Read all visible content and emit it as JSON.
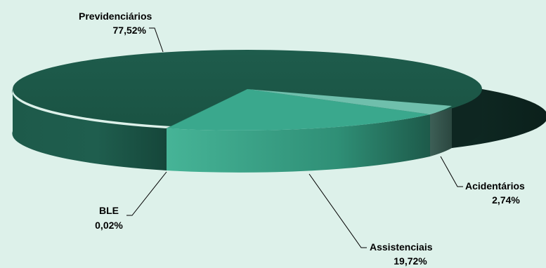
{
  "chart_data": {
    "type": "pie",
    "style": "3d",
    "title": "",
    "slices": [
      {
        "label": "Previdenciários",
        "value_text": "77,52%",
        "value": 77.52,
        "color": "#1d5a4a"
      },
      {
        "label": "Assistenciais",
        "value_text": "19,72%",
        "value": 19.72,
        "color": "#3aa88d"
      },
      {
        "label": "Acidentários",
        "value_text": "2,74%",
        "value": 2.74,
        "color": "#6fbfac"
      },
      {
        "label": "BLE",
        "value_text": "0,02%",
        "value": 0.02,
        "color": "#2b7a66"
      }
    ]
  }
}
